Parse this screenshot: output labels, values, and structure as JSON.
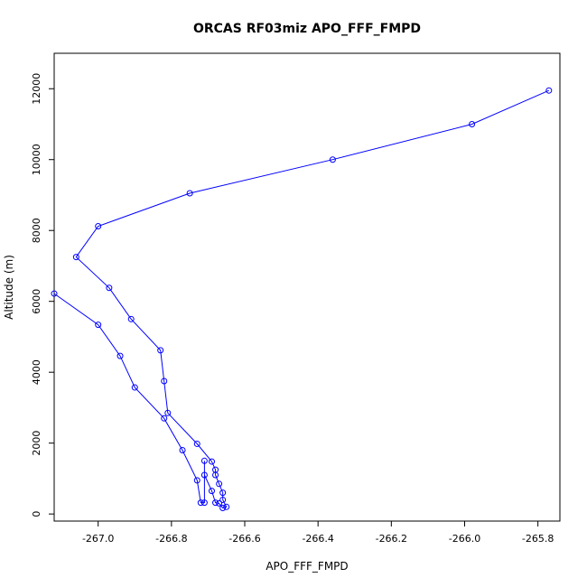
{
  "chart_data": {
    "type": "line",
    "title": "ORCAS RF03miz APO_FFF_FMPD",
    "xlabel": "APO_FFF_FMPD",
    "ylabel": "Altitude (m)",
    "xlim": [
      -267.12,
      -265.74
    ],
    "ylim": [
      -200,
      13000
    ],
    "xticks": [
      -267.0,
      -266.8,
      -266.6,
      -266.4,
      -266.2,
      -266.0,
      -265.8
    ],
    "xtick_labels": [
      "-267.0",
      "-266.8",
      "-266.6",
      "-266.4",
      "-266.2",
      "-266.0",
      "-265.8"
    ],
    "yticks": [
      0,
      2000,
      4000,
      6000,
      8000,
      10000,
      12000
    ],
    "ytick_labels": [
      "0",
      "2000",
      "4000",
      "6000",
      "8000",
      "10000",
      "12000"
    ],
    "colors": {
      "series": "#0000ff"
    },
    "series": [
      {
        "x": [
          -265.77,
          -265.98,
          -266.36,
          -266.75,
          -267.0,
          -267.06,
          -266.97,
          -266.91,
          -266.83,
          -266.82,
          -266.81,
          -266.73,
          -266.69,
          -266.68,
          -266.68,
          -266.67,
          -266.66,
          -266.66,
          -266.65,
          -266.66,
          -266.67,
          -266.68,
          -266.69,
          -266.71,
          -266.71,
          -266.71,
          -266.72,
          -266.73,
          -266.77,
          -266.82,
          -266.9,
          -266.94,
          -267.0,
          -267.12
        ],
        "y": [
          11950,
          11000,
          10000,
          9050,
          8120,
          7250,
          6380,
          5500,
          4620,
          3750,
          2850,
          1980,
          1480,
          1250,
          1100,
          850,
          600,
          400,
          200,
          170,
          300,
          320,
          650,
          1100,
          1500,
          320,
          320,
          950,
          1800,
          2700,
          3570,
          4460,
          5340,
          6220
        ]
      }
    ]
  }
}
